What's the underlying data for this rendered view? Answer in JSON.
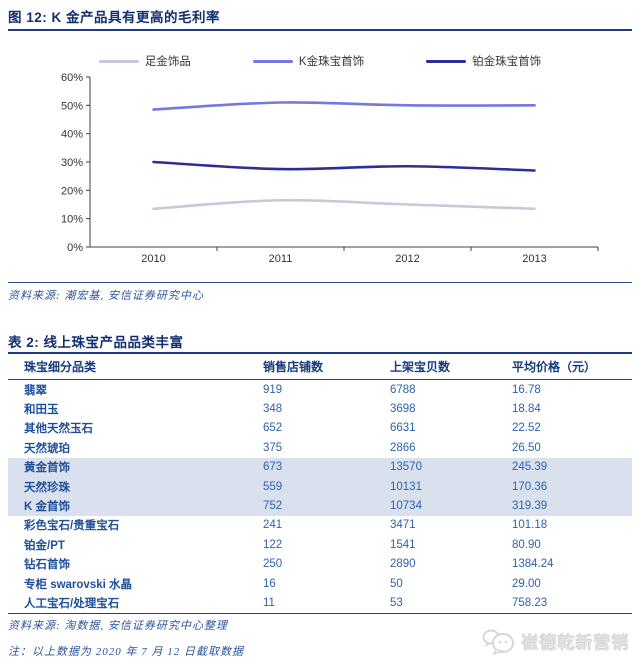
{
  "figure": {
    "title": "图 12: K 金产品具有更高的毛利率",
    "source": "资料来源: 潮宏基, 安信证券研究中心"
  },
  "chart_data": {
    "type": "line",
    "x": [
      "2010",
      "2011",
      "2012",
      "2013"
    ],
    "series": [
      {
        "name": "足金饰品",
        "color": "#c9c7db",
        "values": [
          13.5,
          16.5,
          15.0,
          13.5
        ]
      },
      {
        "name": "K金珠宝首饰",
        "color": "#7478e2",
        "values": [
          48.5,
          51.0,
          50.0,
          50.0
        ]
      },
      {
        "name": "铂金珠宝首饰",
        "color": "#2b2e96",
        "values": [
          30.0,
          27.5,
          28.5,
          27.0
        ]
      }
    ],
    "title": "K 金产品具有更高的毛利率",
    "xlabel": "",
    "ylabel": "",
    "ylim": [
      0,
      60
    ],
    "ytick_step": 10,
    "ytick_suffix": "%",
    "grid": false,
    "legend_position": "top",
    "line_style": "smooth"
  },
  "table": {
    "title": "表 2: 线上珠宝产品品类丰富",
    "columns": [
      "珠宝细分品类",
      "销售店铺数",
      "上架宝贝数",
      "平均价格（元）"
    ],
    "rows": [
      {
        "category": "翡翠",
        "shops": "919",
        "listings": "6788",
        "avg_price": "16.78",
        "highlight": false
      },
      {
        "category": "和田玉",
        "shops": "348",
        "listings": "3698",
        "avg_price": "18.84",
        "highlight": false
      },
      {
        "category": "其他天然玉石",
        "shops": "652",
        "listings": "6631",
        "avg_price": "22.52",
        "highlight": false
      },
      {
        "category": "天然琥珀",
        "shops": "375",
        "listings": "2866",
        "avg_price": "26.50",
        "highlight": false
      },
      {
        "category": "黄金首饰",
        "shops": "673",
        "listings": "13570",
        "avg_price": "245.39",
        "highlight": true
      },
      {
        "category": "天然珍珠",
        "shops": "559",
        "listings": "10131",
        "avg_price": "170.36",
        "highlight": true
      },
      {
        "category": "K 金首饰",
        "shops": "752",
        "listings": "10734",
        "avg_price": "319.39",
        "highlight": true
      },
      {
        "category": "彩色宝石/贵重宝石",
        "shops": "241",
        "listings": "3471",
        "avg_price": "101.18",
        "highlight": false
      },
      {
        "category": "铂金/PT",
        "shops": "122",
        "listings": "1541",
        "avg_price": "80.90",
        "highlight": false
      },
      {
        "category": "钻石首饰",
        "shops": "250",
        "listings": "2890",
        "avg_price": "1384.24",
        "highlight": false
      },
      {
        "category": "专柜 swarovski 水晶",
        "shops": "16",
        "listings": "50",
        "avg_price": "29.00",
        "highlight": false
      },
      {
        "category": "人工宝石/处理宝石",
        "shops": "11",
        "listings": "53",
        "avg_price": "758.23",
        "highlight": false
      }
    ],
    "source": "资料来源: 淘数据, 安信证券研究中心整理",
    "note": "注：以上数据为 2020 年 7 月 12 日截取数据"
  },
  "watermark": {
    "text": "崔德乾新营销"
  }
}
